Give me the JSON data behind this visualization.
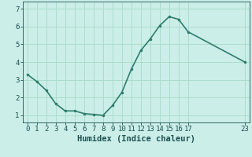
{
  "x": [
    0,
    1,
    2,
    3,
    4,
    5,
    6,
    7,
    8,
    9,
    10,
    11,
    12,
    13,
    14,
    15,
    16,
    17,
    23
  ],
  "y": [
    3.3,
    2.9,
    2.4,
    1.65,
    1.25,
    1.25,
    1.1,
    1.05,
    1.0,
    1.55,
    2.3,
    3.6,
    4.65,
    5.3,
    6.05,
    6.55,
    6.4,
    5.7,
    4.0
  ],
  "line_color": "#2e7d6e",
  "marker": ".",
  "marker_size": 3,
  "bg_color": "#cceee8",
  "grid_color": "#aaddcc",
  "xlabel": "Humidex (Indice chaleur)",
  "xlim": [
    -0.5,
    23.5
  ],
  "ylim": [
    0.6,
    7.4
  ],
  "xticks": [
    0,
    1,
    2,
    3,
    4,
    5,
    6,
    7,
    8,
    9,
    10,
    11,
    12,
    13,
    14,
    15,
    16,
    17,
    23
  ],
  "yticks": [
    1,
    2,
    3,
    4,
    5,
    6,
    7
  ],
  "tick_label_color": "#1a5050",
  "xlabel_fontsize": 7.5,
  "tick_fontsize": 6.5,
  "linewidth": 1.2
}
